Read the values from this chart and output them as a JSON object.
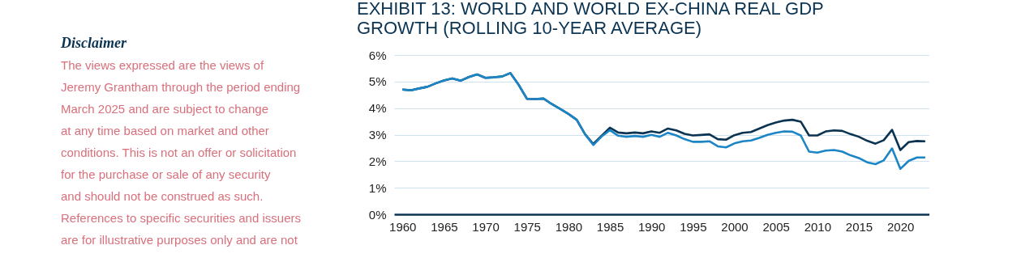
{
  "chart_data": {
    "type": "line",
    "title": "EXHIBIT 13: WORLD AND WORLD EX-CHINA REAL GDP GROWTH (ROLLING 10-YEAR AVERAGE)",
    "annotations": [
      "Disclaimer",
      "The views expressed are the views of",
      "Jeremy Grantham through the period ending",
      "March 2025 and are subject to change",
      "at any time based on market and other",
      "conditions. This is not an offer or solicitation",
      "for the purchase or sale of any security",
      "and should not be construed as such.",
      "References to specific securities and issuers",
      "are for illustrative purposes only and are not"
    ],
    "x": [
      1960,
      1961,
      1962,
      1963,
      1964,
      1965,
      1966,
      1967,
      1968,
      1969,
      1970,
      1971,
      1972,
      1973,
      1974,
      1975,
      1976,
      1977,
      1978,
      1979,
      1980,
      1981,
      1982,
      1983,
      1984,
      1985,
      1986,
      1987,
      1988,
      1989,
      1990,
      1991,
      1992,
      1993,
      1994,
      1995,
      1996,
      1997,
      1998,
      1999,
      2000,
      2001,
      2002,
      2003,
      2004,
      2005,
      2006,
      2007,
      2008,
      2009,
      2010,
      2011,
      2012,
      2013,
      2014,
      2015,
      2016,
      2017,
      2018,
      2019,
      2020,
      2021,
      2022,
      2023
    ],
    "series": [
      {
        "color": "#0b3352",
        "values": [
          4.7,
          4.67,
          4.74,
          4.8,
          4.93,
          5.04,
          5.12,
          5.03,
          5.17,
          5.27,
          5.14,
          5.16,
          5.19,
          5.32,
          4.88,
          4.35,
          4.34,
          4.36,
          4.15,
          3.97,
          3.78,
          3.56,
          3.02,
          2.65,
          2.96,
          3.26,
          3.08,
          3.05,
          3.08,
          3.05,
          3.12,
          3.07,
          3.23,
          3.16,
          3.03,
          2.97,
          2.99,
          3.01,
          2.83,
          2.81,
          2.98,
          3.07,
          3.1,
          3.23,
          3.36,
          3.46,
          3.53,
          3.56,
          3.49,
          2.97,
          2.97,
          3.12,
          3.16,
          3.14,
          3.02,
          2.92,
          2.77,
          2.66,
          2.79,
          3.18,
          2.42,
          2.72,
          2.76,
          2.75
        ]
      },
      {
        "color": "#1b85c6",
        "values": [
          4.7,
          4.67,
          4.74,
          4.8,
          4.93,
          5.04,
          5.12,
          5.03,
          5.17,
          5.27,
          5.14,
          5.16,
          5.19,
          5.32,
          4.88,
          4.35,
          4.34,
          4.36,
          4.15,
          3.97,
          3.78,
          3.56,
          3.02,
          2.61,
          2.93,
          3.17,
          2.96,
          2.92,
          2.95,
          2.92,
          2.99,
          2.92,
          3.07,
          2.97,
          2.83,
          2.73,
          2.73,
          2.75,
          2.56,
          2.52,
          2.67,
          2.75,
          2.78,
          2.88,
          2.99,
          3.07,
          3.12,
          3.11,
          2.97,
          2.36,
          2.32,
          2.4,
          2.42,
          2.36,
          2.22,
          2.12,
          1.96,
          1.89,
          2.03,
          2.48,
          1.71,
          2.01,
          2.14,
          2.14
        ]
      }
    ],
    "xlim": [
      1959,
      2023.5
    ],
    "xticks": [
      1960,
      1965,
      1970,
      1975,
      1980,
      1985,
      1990,
      1995,
      2000,
      2005,
      2010,
      2015,
      2020
    ],
    "ylim": [
      0,
      6
    ],
    "yticks": [
      {
        "value": 0,
        "label": "0%"
      },
      {
        "value": 1,
        "label": "1%"
      },
      {
        "value": 2,
        "label": "2%"
      },
      {
        "value": 3,
        "label": "3%"
      },
      {
        "value": 4,
        "label": "4%"
      },
      {
        "value": 5,
        "label": "5%"
      },
      {
        "value": 6,
        "label": "6%"
      }
    ],
    "grid": "y",
    "legend": false,
    "marker": "none",
    "line_style": "solid"
  }
}
